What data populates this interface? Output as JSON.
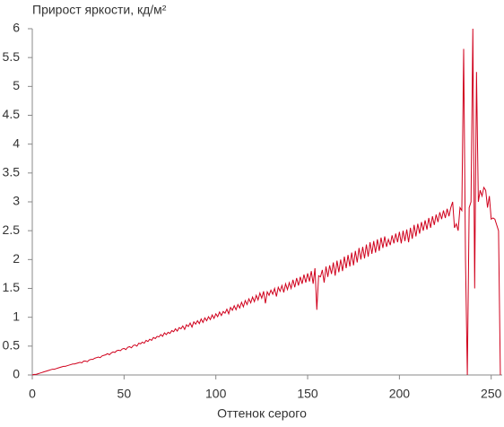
{
  "chart_data": {
    "type": "line",
    "title": "Прирост яркости, кд/м²",
    "x_label": "Оттенок серого",
    "xlim": [
      0,
      256
    ],
    "ylim": [
      0,
      6
    ],
    "xticks": [
      0,
      50,
      100,
      150,
      200,
      250
    ],
    "yticks": [
      0,
      0.5,
      1,
      1.5,
      2,
      2.5,
      3,
      3.5,
      4,
      4.5,
      5,
      5.5,
      6
    ],
    "color": "#d0001c",
    "values": [
      0,
      0.01,
      0.01,
      0.02,
      0.03,
      0.04,
      0.05,
      0.06,
      0.07,
      0.08,
      0.09,
      0.1,
      0.1,
      0.11,
      0.12,
      0.13,
      0.14,
      0.15,
      0.15,
      0.16,
      0.17,
      0.18,
      0.19,
      0.19,
      0.2,
      0.21,
      0.22,
      0.21,
      0.24,
      0.24,
      0.23,
      0.26,
      0.27,
      0.27,
      0.29,
      0.3,
      0.31,
      0.3,
      0.33,
      0.34,
      0.35,
      0.37,
      0.35,
      0.38,
      0.4,
      0.39,
      0.42,
      0.43,
      0.42,
      0.45,
      0.46,
      0.44,
      0.48,
      0.49,
      0.47,
      0.51,
      0.52,
      0.5,
      0.55,
      0.54,
      0.57,
      0.55,
      0.6,
      0.58,
      0.62,
      0.6,
      0.65,
      0.63,
      0.67,
      0.66,
      0.7,
      0.67,
      0.73,
      0.7,
      0.74,
      0.72,
      0.77,
      0.75,
      0.8,
      0.76,
      0.82,
      0.8,
      0.85,
      0.79,
      0.87,
      0.84,
      0.9,
      0.83,
      0.92,
      0.88,
      0.94,
      0.89,
      0.97,
      0.91,
      0.99,
      0.94,
      1.01,
      0.96,
      1.04,
      0.98,
      1.06,
      1.01,
      1.09,
      1.03,
      1.1,
      1.07,
      1.14,
      1.06,
      1.17,
      1.12,
      1.2,
      1.13,
      1.22,
      1.16,
      1.26,
      1.18,
      1.29,
      1.22,
      1.32,
      1.25,
      1.35,
      1.27,
      1.38,
      1.3,
      1.42,
      1.33,
      1.45,
      1.24,
      1.44,
      1.38,
      1.47,
      1.4,
      1.5,
      1.36,
      1.52,
      1.45,
      1.55,
      1.43,
      1.58,
      1.48,
      1.6,
      1.5,
      1.65,
      1.52,
      1.68,
      1.55,
      1.7,
      1.58,
      1.74,
      1.6,
      1.76,
      1.62,
      1.8,
      1.58,
      1.85,
      1.13,
      1.72,
      1.7,
      1.82,
      1.6,
      1.88,
      1.7,
      1.9,
      1.75,
      1.95,
      1.72,
      1.98,
      1.78,
      2.0,
      1.8,
      2.05,
      1.85,
      2.08,
      1.88,
      2.12,
      1.9,
      2.15,
      1.95,
      2.2,
      2.0,
      2.22,
      2.02,
      2.26,
      2.05,
      2.3,
      2.1,
      2.32,
      2.12,
      2.35,
      2.15,
      2.38,
      2.2,
      2.4,
      2.22,
      2.35,
      2.25,
      2.42,
      2.28,
      2.45,
      2.3,
      2.48,
      2.28,
      2.5,
      2.32,
      2.52,
      2.3,
      2.55,
      2.36,
      2.6,
      2.4,
      2.62,
      2.45,
      2.65,
      2.5,
      2.68,
      2.52,
      2.72,
      2.55,
      2.75,
      2.6,
      2.78,
      2.65,
      2.82,
      2.7,
      2.85,
      2.72,
      2.88,
      2.75,
      2.9,
      3.0,
      2.55,
      2.62,
      2.5,
      2.9,
      2.85,
      5.65,
      2.0,
      0,
      2.9,
      3.0,
      6.0,
      1.5,
      5.25,
      3.0,
      3.2,
      3.1,
      3.25,
      3.2,
      2.9,
      3.1,
      2.7,
      2.72,
      2.7,
      2.6,
      2.5,
      0
    ]
  }
}
